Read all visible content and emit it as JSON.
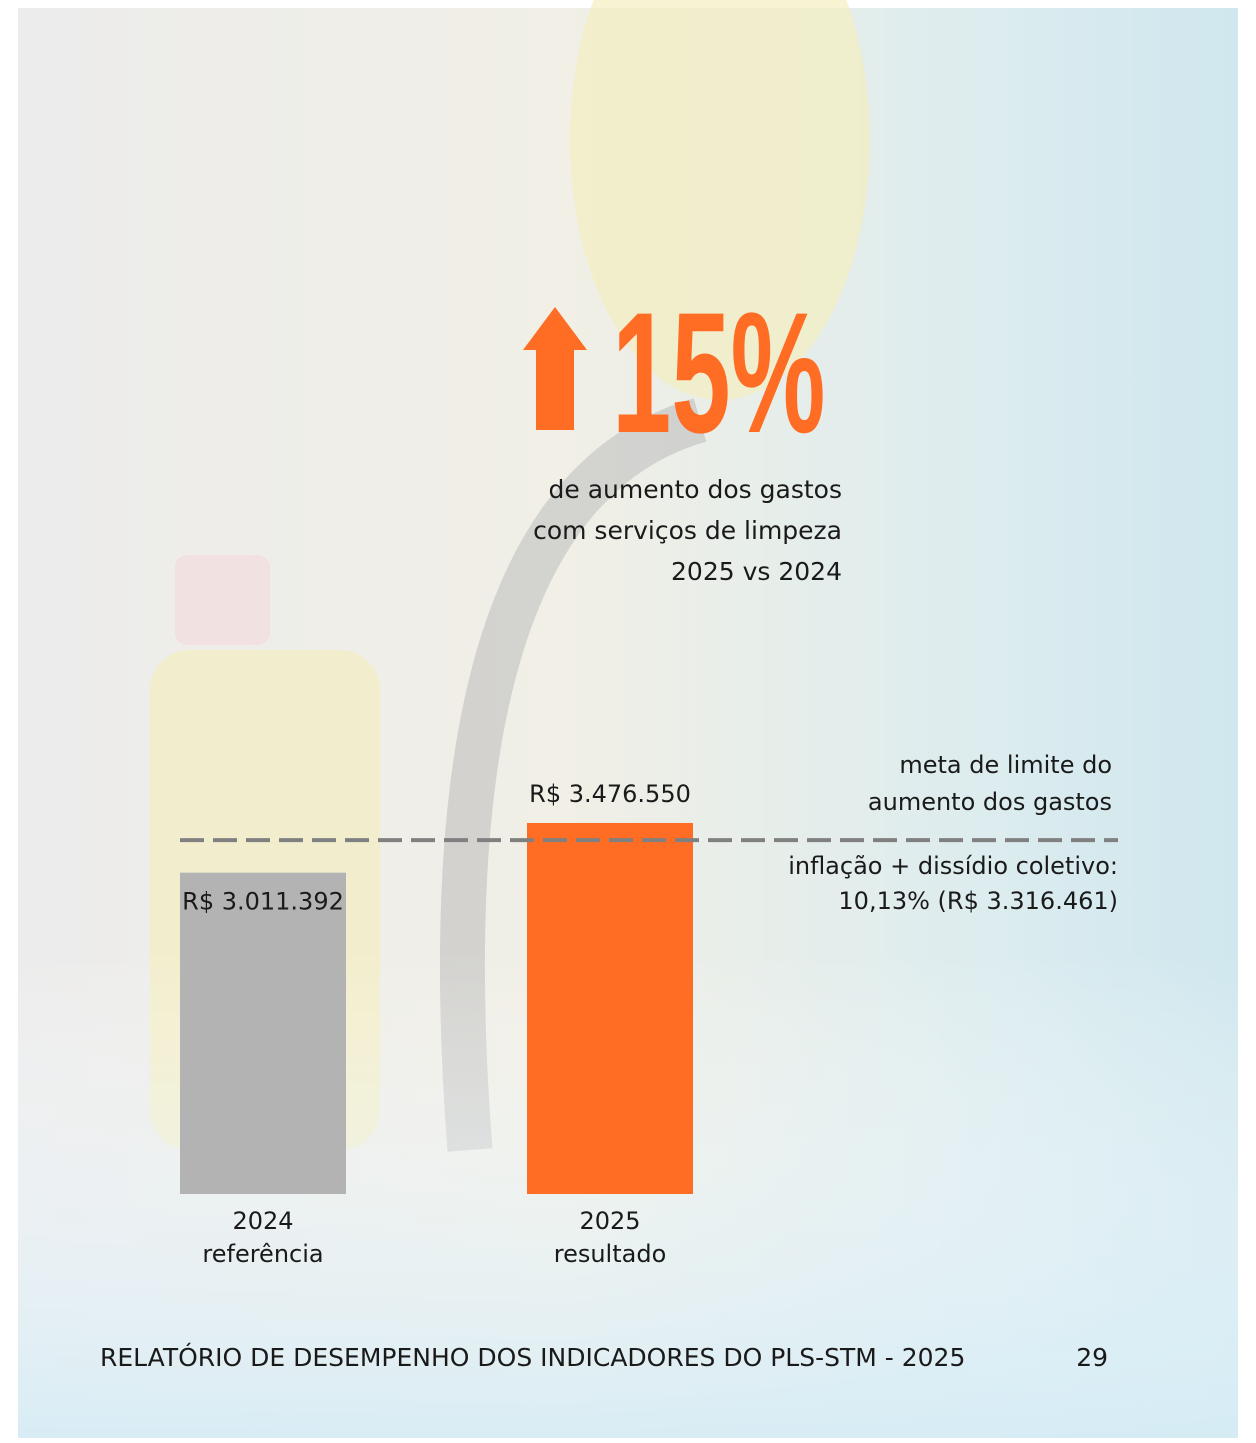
{
  "chart_data": {
    "type": "bar",
    "headline": "15%",
    "subtitle_lines": [
      "de aumento dos gastos",
      "com serviços de limpeza",
      "2025 vs 2024"
    ],
    "categories": [
      "2024",
      "2025"
    ],
    "category_notes": [
      "referência",
      "resultado"
    ],
    "values": [
      3011392,
      3476550
    ],
    "value_labels": [
      "R$ 3.011.392",
      "R$ 3.476.550"
    ],
    "colors": [
      "#b3b3b3",
      "#ff6c24"
    ],
    "reference_line": {
      "value": 3316461,
      "color": "#808080",
      "label_lines": [
        "meta de limite do",
        "aumento dos gastos"
      ],
      "description_lines": [
        "inflação + dissídio coletivo:",
        "10,13% (R$ 3.316.461)"
      ]
    }
  },
  "footer": {
    "title": "RELATÓRIO DE DESEMPENHO DOS INDICADORES DO PLS-STM - 2025",
    "page": "29"
  }
}
